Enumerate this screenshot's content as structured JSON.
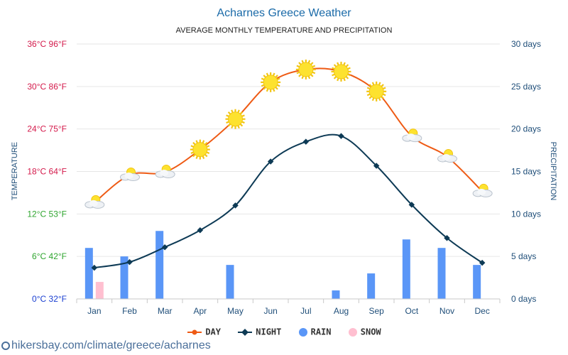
{
  "title": "Acharnes Greece Weather",
  "subtitle": "AVERAGE MONTHLY TEMPERATURE AND PRECIPITATION",
  "source_text": "hikersbay.com/climate/greece/acharnes",
  "chart_data": {
    "type": "line",
    "categories": [
      "Jan",
      "Feb",
      "Mar",
      "Apr",
      "May",
      "Jun",
      "Jul",
      "Aug",
      "Sep",
      "Oct",
      "Nov",
      "Dec"
    ],
    "y_left": {
      "label": "TEMPERATURE",
      "ylim": [
        0,
        36
      ],
      "ticks": [
        {
          "value": 0,
          "label": "0°C 32°F",
          "color": "#1a3fd1"
        },
        {
          "value": 6,
          "label": "6°C 42°F",
          "color": "#2fa52f"
        },
        {
          "value": 12,
          "label": "12°C 53°F",
          "color": "#2fa52f"
        },
        {
          "value": 18,
          "label": "18°C 64°F",
          "color": "#d41a4b"
        },
        {
          "value": 24,
          "label": "24°C 75°F",
          "color": "#d41a4b"
        },
        {
          "value": 30,
          "label": "30°C 86°F",
          "color": "#d41a4b"
        },
        {
          "value": 36,
          "label": "36°C 96°F",
          "color": "#d41a4b"
        }
      ]
    },
    "y_right": {
      "label": "PRECIPITATION",
      "ylim": [
        0,
        30
      ],
      "ticks": [
        {
          "value": 0,
          "label": "0 days"
        },
        {
          "value": 5,
          "label": "5 days"
        },
        {
          "value": 10,
          "label": "10 days"
        },
        {
          "value": 15,
          "label": "15 days"
        },
        {
          "value": 20,
          "label": "20 days"
        },
        {
          "value": 25,
          "label": "25 days"
        },
        {
          "value": 30,
          "label": "30 days"
        }
      ]
    },
    "series": [
      {
        "name": "DAY",
        "kind": "line",
        "axis": "left",
        "color": "#ee5a14",
        "values": [
          13.6,
          17.5,
          17.9,
          21.1,
          25.4,
          30.6,
          32.4,
          32.1,
          29.3,
          23.0,
          20.1,
          15.2
        ]
      },
      {
        "name": "NIGHT",
        "kind": "line",
        "axis": "left",
        "color": "#0d3a55",
        "values": [
          4.4,
          5.2,
          7.3,
          9.7,
          13.2,
          19.4,
          22.2,
          23.0,
          18.8,
          13.3,
          8.6,
          5.1
        ]
      },
      {
        "name": "RAIN",
        "kind": "bar",
        "axis": "right",
        "color": "#5a96f7",
        "values": [
          6,
          5,
          8,
          0,
          4,
          0,
          0,
          1,
          3,
          7,
          6,
          4
        ]
      },
      {
        "name": "SNOW",
        "kind": "bar",
        "axis": "right",
        "color": "#ffbfd0",
        "values": [
          2,
          0,
          0,
          0,
          0,
          0,
          0,
          0,
          0,
          0,
          0,
          0
        ]
      }
    ],
    "weather_icons": [
      "partly-cloudy-icon",
      "partly-cloudy-icon",
      "partly-cloudy-icon",
      "sun-icon",
      "sun-icon",
      "sun-icon",
      "sun-icon",
      "sun-icon",
      "sun-icon",
      "partly-cloudy-icon",
      "partly-cloudy-icon",
      "partly-cloudy-icon"
    ],
    "grid": true,
    "legend_position": "bottom"
  },
  "colors": {
    "title": "#1a6aa8",
    "axis_right": "#1f4e79",
    "grid": "#e6e6e6"
  }
}
